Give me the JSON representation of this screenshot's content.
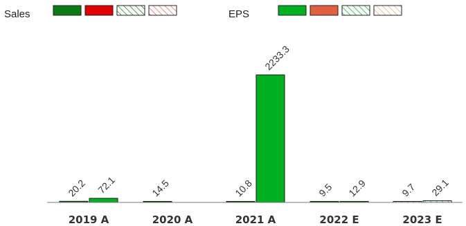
{
  "chart_data": {
    "type": "bar",
    "categories": [
      "2019 A",
      "2020 A",
      "2021 A",
      "2022 E",
      "2023 E"
    ],
    "series": [
      {
        "name": "Sales",
        "values": [
          20.2,
          14.5,
          10.8,
          9.5,
          9.7
        ]
      },
      {
        "name": "EPS",
        "values": [
          72.1,
          null,
          2233.3,
          12.9,
          29.1
        ]
      }
    ],
    "legend": {
      "position": "top-left",
      "groups": [
        {
          "label": "Sales",
          "swatches": [
            {
              "color": "#0a7a12",
              "style": "solid"
            },
            {
              "color": "#e00000",
              "style": "solid"
            },
            {
              "color": "#0a7a12",
              "style": "hatched"
            },
            {
              "color": "#e06060",
              "style": "hatched"
            }
          ]
        },
        {
          "label": "EPS",
          "swatches": [
            {
              "color": "#00b020",
              "style": "solid"
            },
            {
              "color": "#e06040",
              "style": "solid"
            },
            {
              "color": "#00b020",
              "style": "hatched"
            },
            {
              "color": "#f0a070",
              "style": "hatched"
            }
          ]
        }
      ]
    },
    "bar_style": [
      "solid",
      "solid",
      "solid",
      "solid",
      "hatched"
    ],
    "colors": {
      "sales": "#0a7a12",
      "eps": "#00b020",
      "hatched_fill": "#eaf7ea"
    },
    "ylim": [
      0,
      2233.3
    ],
    "grid": false,
    "xlabel": "",
    "ylabel": ""
  }
}
